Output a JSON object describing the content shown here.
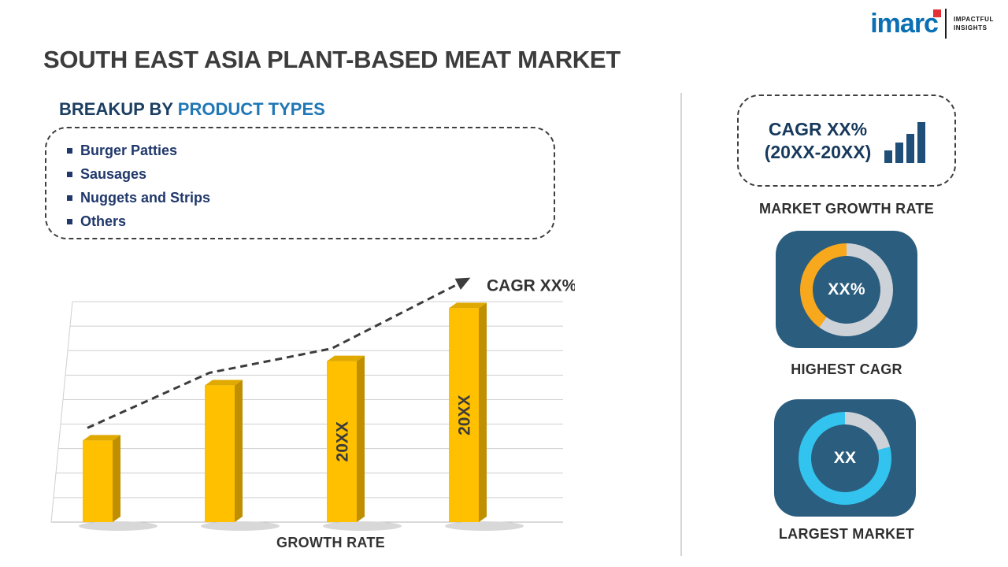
{
  "header": {
    "title": "SOUTH EAST ASIA PLANT-BASED MEAT MARKET",
    "logo": {
      "brand": "imarc",
      "tagline_line1": "IMPACTFUL",
      "tagline_line2": "INSIGHTS"
    }
  },
  "left": {
    "section_title_prefix": "BREAKUP BY ",
    "section_title_highlight": "PRODUCT TYPES",
    "product_types": [
      "Burger Patties",
      "Sausages",
      "Nuggets and Strips",
      "Others"
    ]
  },
  "right": {
    "cagr_box": {
      "line1": "CAGR XX%",
      "line2": "(20XX-20XX)"
    },
    "market_growth_rate_label": "MARKET GROWTH RATE",
    "highest_cagr": {
      "value": "XX%",
      "label": "HIGHEST CAGR",
      "donut": {
        "color": "#f8a81c",
        "percent": 40
      }
    },
    "largest_market": {
      "value": "XX",
      "label": "LARGEST MARKET",
      "donut": {
        "color": "#33c3ef",
        "percent": 79
      }
    }
  },
  "chart_data": {
    "type": "bar",
    "categories": [
      "",
      "",
      "20XX",
      "20XX"
    ],
    "values": [
      37,
      62,
      73,
      97
    ],
    "value_note": "relative bar heights estimated from pixels; no numeric axis labels are shown",
    "title": "",
    "xlabel": "GROWTH RATE",
    "ylabel": "",
    "ylim": [
      0,
      100
    ],
    "grid": true,
    "gridlines": 10,
    "annotation": "CAGR XX%",
    "trend": "dashed ascending arrow across bar tops"
  },
  "colors": {
    "bar_front": "#ffc000",
    "bar_side": "#bf8f00",
    "bar_top": "#e0a900",
    "accent_navy": "#1c3e61",
    "accent_blue": "#2077b6",
    "bullet_navy": "#20386b",
    "card_blue": "#2b5d7e",
    "donut_track": "#ccd2d8",
    "donut_yellow": "#f8a81c",
    "donut_cyan": "#33c3ef",
    "icon_blue": "#1f4e79",
    "brand_blue": "#0a6fb4",
    "brand_red": "#e23238"
  }
}
